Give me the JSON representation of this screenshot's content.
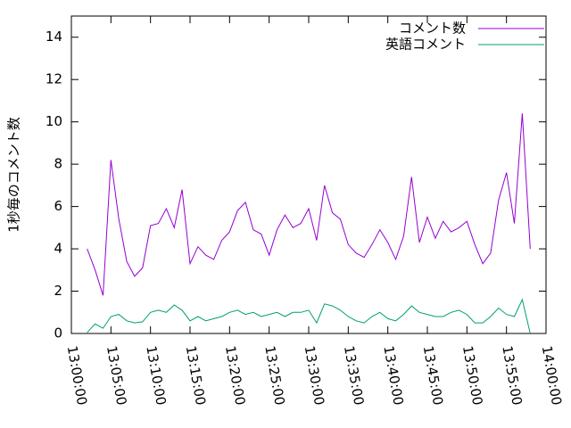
{
  "chart_data": {
    "type": "line",
    "y_label": "1秒毎のコメント数",
    "x": [
      "13:02:00",
      "13:03:00",
      "13:04:00",
      "13:05:00",
      "13:06:00",
      "13:07:00",
      "13:08:00",
      "13:09:00",
      "13:10:00",
      "13:11:00",
      "13:12:00",
      "13:13:00",
      "13:14:00",
      "13:15:00",
      "13:16:00",
      "13:17:00",
      "13:18:00",
      "13:19:00",
      "13:20:00",
      "13:21:00",
      "13:22:00",
      "13:23:00",
      "13:24:00",
      "13:25:00",
      "13:26:00",
      "13:27:00",
      "13:28:00",
      "13:29:00",
      "13:30:00",
      "13:31:00",
      "13:32:00",
      "13:33:00",
      "13:34:00",
      "13:35:00",
      "13:36:00",
      "13:37:00",
      "13:38:00",
      "13:39:00",
      "13:40:00",
      "13:41:00",
      "13:42:00",
      "13:43:00",
      "13:44:00",
      "13:45:00",
      "13:46:00",
      "13:47:00",
      "13:48:00",
      "13:49:00",
      "13:50:00",
      "13:51:00",
      "13:52:00",
      "13:53:00",
      "13:54:00",
      "13:55:00",
      "13:56:00",
      "13:57:00",
      "13:58:00"
    ],
    "series": [
      {
        "name": "コメント数",
        "color": "#9400d3",
        "values": [
          4.0,
          3.0,
          1.8,
          8.2,
          5.4,
          3.4,
          2.7,
          3.1,
          5.1,
          5.2,
          5.9,
          5.0,
          6.8,
          3.3,
          4.1,
          3.7,
          3.5,
          4.4,
          4.8,
          5.8,
          6.2,
          4.9,
          4.7,
          3.7,
          4.9,
          5.6,
          5.0,
          5.2,
          5.9,
          4.4,
          7.0,
          5.7,
          5.4,
          4.2,
          3.8,
          3.6,
          4.2,
          4.9,
          4.3,
          3.5,
          4.6,
          7.4,
          4.3,
          5.5,
          4.5,
          5.3,
          4.8,
          5.0,
          5.3,
          4.2,
          3.3,
          3.8,
          6.3,
          7.6,
          5.2,
          10.4,
          4.0
        ]
      },
      {
        "name": "英語コメント",
        "color": "#009e73",
        "values": [
          0.05,
          0.45,
          0.25,
          0.8,
          0.9,
          0.6,
          0.5,
          0.55,
          1.0,
          1.1,
          1.0,
          1.35,
          1.1,
          0.6,
          0.8,
          0.6,
          0.7,
          0.8,
          1.0,
          1.1,
          0.9,
          1.0,
          0.8,
          0.9,
          1.0,
          0.8,
          1.0,
          1.0,
          1.1,
          0.5,
          1.4,
          1.3,
          1.1,
          0.8,
          0.6,
          0.5,
          0.8,
          1.0,
          0.7,
          0.6,
          0.9,
          1.3,
          1.0,
          0.9,
          0.8,
          0.8,
          1.0,
          1.1,
          0.9,
          0.5,
          0.5,
          0.8,
          1.2,
          0.9,
          0.8,
          1.6,
          0.0
        ]
      }
    ],
    "xlim": [
      "13:00:00",
      "14:00:00"
    ],
    "xticks": [
      "13:00:00",
      "13:05:00",
      "13:10:00",
      "13:15:00",
      "13:20:00",
      "13:25:00",
      "13:30:00",
      "13:35:00",
      "13:40:00",
      "13:45:00",
      "13:50:00",
      "13:55:00",
      "14:00:00"
    ],
    "ylim": [
      0,
      15
    ],
    "yticks": [
      0,
      2,
      4,
      6,
      8,
      10,
      12,
      14
    ],
    "legend": "top-right"
  }
}
